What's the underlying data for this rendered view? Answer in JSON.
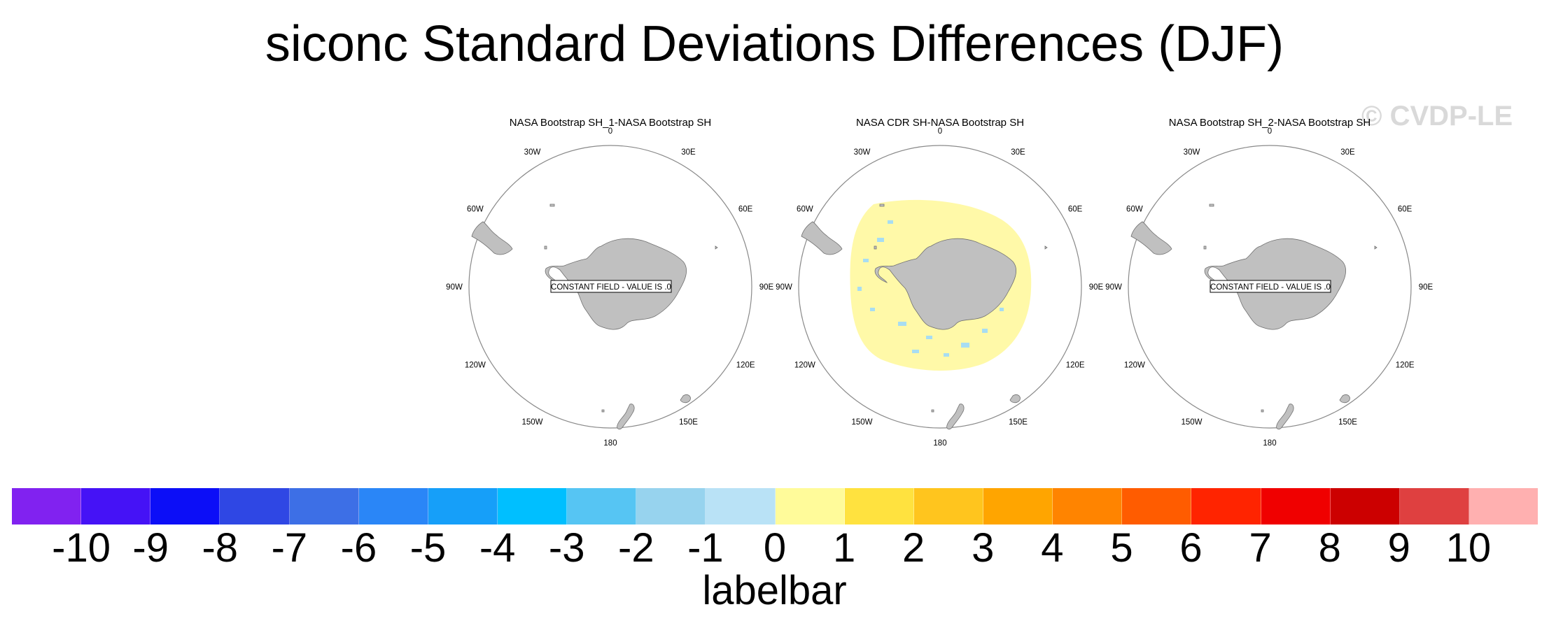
{
  "title": "siconc Standard Deviations Differences (DJF)",
  "watermark": "© CVDP-LE",
  "panels": [
    {
      "title": "NASA Bootstrap SH_1-NASA Bootstrap SH",
      "constant_field": "CONSTANT FIELD - VALUE IS .0",
      "shaded": false
    },
    {
      "title": "NASA CDR SH-NASA Bootstrap SH",
      "constant_field": "",
      "shaded": true
    },
    {
      "title": "NASA Bootstrap SH_2-NASA Bootstrap SH",
      "constant_field": "CONSTANT FIELD - VALUE IS .0",
      "shaded": false
    }
  ],
  "longitude_labels": [
    "0",
    "30E",
    "60E",
    "90E",
    "120E",
    "150E",
    "180",
    "150W",
    "120W",
    "90W",
    "60W",
    "30W"
  ],
  "labelbar": {
    "title": "labelbar",
    "ticks": [
      "-10",
      "-9",
      "-8",
      "-7",
      "-6",
      "-5",
      "-4",
      "-3",
      "-2",
      "-1",
      "0",
      "1",
      "2",
      "3",
      "4",
      "5",
      "6",
      "7",
      "8",
      "9",
      "10"
    ],
    "colors": [
      "#8122f0",
      "#4512f6",
      "#0c0ef7",
      "#2f47e4",
      "#3d6fe6",
      "#2a86f7",
      "#169ff9",
      "#00bfff",
      "#56c5f3",
      "#97d3ee",
      "#b9e2f6",
      "#fffb9a",
      "#ffe23f",
      "#ffc51e",
      "#ffa500",
      "#ff8400",
      "#ff5c00",
      "#ff2400",
      "#f00000",
      "#cc0000",
      "#df4040",
      "#ffb0b0"
    ]
  },
  "style": {
    "land_color": "#c0c0c0",
    "positive_shade": "#fff9a8",
    "negative_shade": "#a8ddf2"
  }
}
